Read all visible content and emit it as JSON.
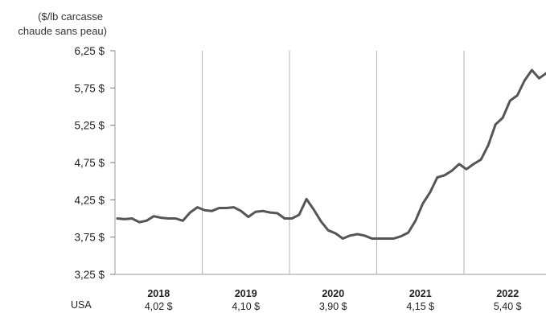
{
  "chart_data": {
    "type": "line",
    "unit_label": [
      "($/lb carcasse",
      "chaude sans peau)"
    ],
    "y_ticks": [
      "6,25 $",
      "5,75 $",
      "5,25 $",
      "4,75 $",
      "4,25 $",
      "3,75 $",
      "3,25 $"
    ],
    "y_tick_values": [
      6.25,
      5.75,
      5.25,
      4.75,
      4.25,
      3.75,
      3.25
    ],
    "ylim": [
      3.25,
      6.25
    ],
    "grid": "vertical lines at year boundaries",
    "years": [
      "2018",
      "2019",
      "2020",
      "2021",
      "2022"
    ],
    "row_label": "USA",
    "annual_averages": [
      "4,02 $",
      "4,10 $",
      "3,90 $",
      "4,15 $",
      "5,40 $"
    ],
    "series": [
      {
        "color": "#555555",
        "values": [
          4.0,
          3.99,
          4.0,
          3.95,
          3.97,
          4.03,
          4.01,
          4.0,
          4.0,
          3.97,
          4.08,
          4.15,
          4.11,
          4.1,
          4.14,
          4.14,
          4.15,
          4.1,
          4.02,
          4.09,
          4.1,
          4.08,
          4.07,
          4.0,
          4.0,
          4.05,
          4.26,
          4.12,
          3.96,
          3.84,
          3.8,
          3.73,
          3.77,
          3.79,
          3.77,
          3.73,
          3.73,
          3.73,
          3.73,
          3.76,
          3.81,
          3.97,
          4.2,
          4.35,
          4.55,
          4.58,
          4.64,
          4.73,
          4.66,
          4.73,
          4.79,
          4.98,
          5.26,
          5.35,
          5.58,
          5.65,
          5.85,
          5.99,
          5.88,
          5.95
        ]
      }
    ]
  }
}
